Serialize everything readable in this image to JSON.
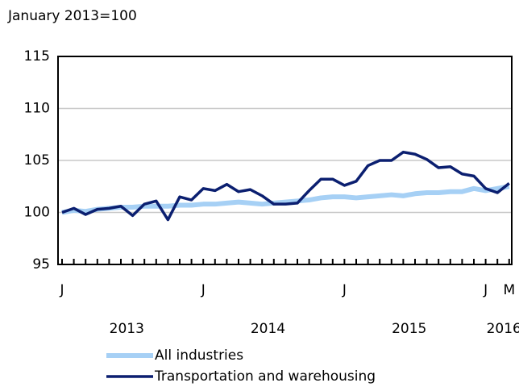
{
  "chart_data": {
    "type": "line",
    "y_label": "January 2013=100",
    "categories": [
      "J",
      null,
      null,
      null,
      null,
      null,
      null,
      null,
      null,
      null,
      null,
      null,
      "J",
      null,
      null,
      null,
      null,
      null,
      null,
      null,
      null,
      null,
      null,
      null,
      "J",
      null,
      null,
      null,
      null,
      null,
      null,
      null,
      null,
      null,
      null,
      null,
      "J",
      null,
      "M"
    ],
    "category_groups": [
      "2013",
      "2013",
      "2013",
      "2013",
      "2013",
      "2013",
      "2013",
      "2013",
      "2013",
      "2013",
      "2013",
      "2013",
      "2014",
      "2014",
      "2014",
      "2014",
      "2014",
      "2014",
      "2014",
      "2014",
      "2014",
      "2014",
      "2014",
      "2014",
      "2015",
      "2015",
      "2015",
      "2015",
      "2015",
      "2015",
      "2015",
      "2015",
      "2015",
      "2015",
      "2015",
      "2015",
      "2016",
      "2016",
      "2016"
    ],
    "series": [
      {
        "name": "All industries",
        "color": "#a6d0f5",
        "values": [
          100,
          100.2,
          100.1,
          100.3,
          100.4,
          100.5,
          100.5,
          100.6,
          100.6,
          100.6,
          100.7,
          100.7,
          100.8,
          100.8,
          100.9,
          101.0,
          100.9,
          100.8,
          100.9,
          101.0,
          101.1,
          101.2,
          101.4,
          101.5,
          101.5,
          101.4,
          101.5,
          101.6,
          101.7,
          101.6,
          101.8,
          101.9,
          101.9,
          102.0,
          102.0,
          102.3,
          102.1,
          102.3,
          102.5
        ]
      },
      {
        "name": "Transportation and warehousing",
        "color": "#0b1f70",
        "values": [
          100,
          100.4,
          99.8,
          100.3,
          100.4,
          100.6,
          99.7,
          100.8,
          101.1,
          99.3,
          101.5,
          101.2,
          102.3,
          102.1,
          102.7,
          102.0,
          102.2,
          101.6,
          100.8,
          100.8,
          100.9,
          102.1,
          103.2,
          103.2,
          102.6,
          103.0,
          104.5,
          105.0,
          105.0,
          105.8,
          105.6,
          105.1,
          104.3,
          104.4,
          103.7,
          103.5,
          102.3,
          101.9,
          102.8
        ]
      }
    ],
    "ylim": [
      95,
      115
    ],
    "yticks": [
      95,
      100,
      105,
      110,
      115
    ],
    "grid": true
  }
}
